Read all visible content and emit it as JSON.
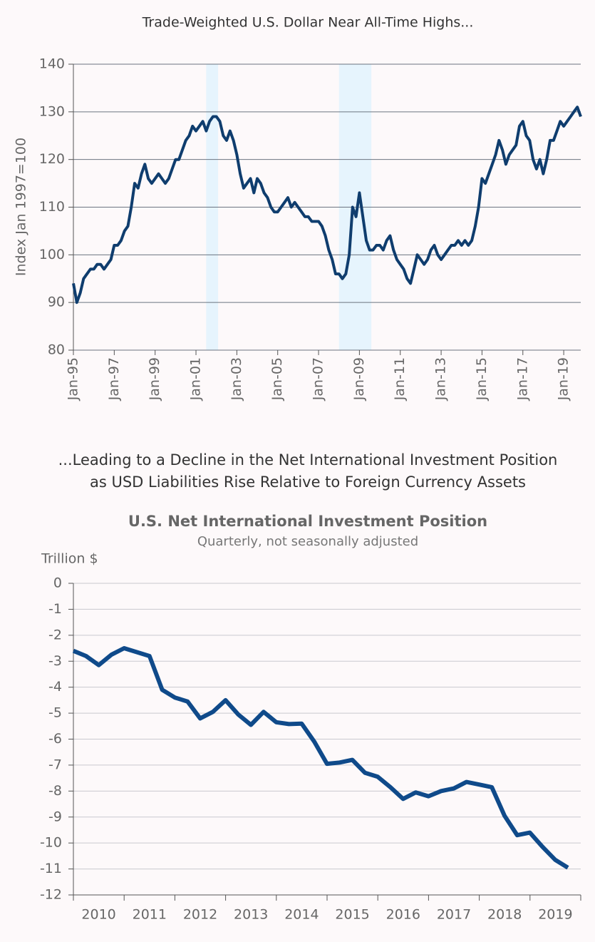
{
  "chart_data": [
    {
      "type": "line",
      "title": "Trade-Weighted U.S. Dollar Near All-Time Highs...",
      "ylabel": "Index Jan 1997=100",
      "x": [
        "1995-01",
        "1995-03",
        "1995-05",
        "1995-07",
        "1995-09",
        "1995-11",
        "1996-01",
        "1996-03",
        "1996-05",
        "1996-07",
        "1996-09",
        "1996-11",
        "1997-01",
        "1997-03",
        "1997-05",
        "1997-07",
        "1997-09",
        "1997-11",
        "1998-01",
        "1998-03",
        "1998-05",
        "1998-07",
        "1998-09",
        "1998-11",
        "1999-01",
        "1999-03",
        "1999-05",
        "1999-07",
        "1999-09",
        "1999-11",
        "2000-01",
        "2000-03",
        "2000-05",
        "2000-07",
        "2000-09",
        "2000-11",
        "2001-01",
        "2001-03",
        "2001-05",
        "2001-07",
        "2001-09",
        "2001-11",
        "2002-01",
        "2002-03",
        "2002-05",
        "2002-07",
        "2002-09",
        "2002-11",
        "2003-01",
        "2003-03",
        "2003-05",
        "2003-07",
        "2003-09",
        "2003-11",
        "2004-01",
        "2004-03",
        "2004-05",
        "2004-07",
        "2004-09",
        "2004-11",
        "2005-01",
        "2005-03",
        "2005-05",
        "2005-07",
        "2005-09",
        "2005-11",
        "2006-01",
        "2006-03",
        "2006-05",
        "2006-07",
        "2006-09",
        "2006-11",
        "2007-01",
        "2007-03",
        "2007-05",
        "2007-07",
        "2007-09",
        "2007-11",
        "2008-01",
        "2008-03",
        "2008-05",
        "2008-07",
        "2008-09",
        "2008-11",
        "2009-01",
        "2009-03",
        "2009-05",
        "2009-07",
        "2009-09",
        "2009-11",
        "2010-01",
        "2010-03",
        "2010-05",
        "2010-07",
        "2010-09",
        "2010-11",
        "2011-01",
        "2011-03",
        "2011-05",
        "2011-07",
        "2011-09",
        "2011-11",
        "2012-01",
        "2012-03",
        "2012-05",
        "2012-07",
        "2012-09",
        "2012-11",
        "2013-01",
        "2013-03",
        "2013-05",
        "2013-07",
        "2013-09",
        "2013-11",
        "2014-01",
        "2014-03",
        "2014-05",
        "2014-07",
        "2014-09",
        "2014-11",
        "2015-01",
        "2015-03",
        "2015-05",
        "2015-07",
        "2015-09",
        "2015-11",
        "2016-01",
        "2016-03",
        "2016-05",
        "2016-07",
        "2016-09",
        "2016-11",
        "2017-01",
        "2017-03",
        "2017-05",
        "2017-07",
        "2017-09",
        "2017-11",
        "2018-01",
        "2018-03",
        "2018-05",
        "2018-07",
        "2018-09",
        "2018-11",
        "2019-01",
        "2019-03",
        "2019-05",
        "2019-07",
        "2019-09",
        "2019-11"
      ],
      "series": [
        {
          "name": "Trade-Weighted U.S. Dollar",
          "color": "#0f3d6e",
          "values": [
            94,
            90,
            92,
            95,
            96,
            97,
            97,
            98,
            98,
            97,
            98,
            99,
            102,
            102,
            103,
            105,
            106,
            110,
            115,
            114,
            117,
            119,
            116,
            115,
            116,
            117,
            116,
            115,
            116,
            118,
            120,
            120,
            122,
            124,
            125,
            127,
            126,
            127,
            128,
            126,
            128,
            129,
            129,
            128,
            125,
            124,
            126,
            124,
            121,
            117,
            114,
            115,
            116,
            113,
            116,
            115,
            113,
            112,
            110,
            109,
            109,
            110,
            111,
            112,
            110,
            111,
            110,
            109,
            108,
            108,
            107,
            107,
            107,
            106,
            104,
            101,
            99,
            96,
            96,
            95,
            96,
            100,
            110,
            108,
            113,
            108,
            103,
            101,
            101,
            102,
            102,
            101,
            103,
            104,
            101,
            99,
            98,
            97,
            95,
            94,
            97,
            100,
            99,
            98,
            99,
            101,
            102,
            100,
            99,
            100,
            101,
            102,
            102,
            103,
            102,
            103,
            102,
            103,
            106,
            110,
            116,
            115,
            117,
            119,
            121,
            124,
            122,
            119,
            121,
            122,
            123,
            127,
            128,
            125,
            124,
            120,
            118,
            120,
            117,
            120,
            124,
            124,
            126,
            128,
            127,
            128,
            129,
            130,
            131,
            129
          ]
        }
      ],
      "shaded_periods": [
        [
          "2001-07",
          "2002-02"
        ],
        [
          "2008-01",
          "2009-08"
        ]
      ],
      "shade_color": "#e6f4fd",
      "xlim": [
        "1995-01",
        "2019-11"
      ],
      "xticks": [
        {
          "value": "1995-01",
          "label": "Jan-95"
        },
        {
          "value": "1997-01",
          "label": "Jan-97"
        },
        {
          "value": "1999-01",
          "label": "Jan-99"
        },
        {
          "value": "2001-01",
          "label": "Jan-01"
        },
        {
          "value": "2003-01",
          "label": "Jan-03"
        },
        {
          "value": "2005-01",
          "label": "Jan-05"
        },
        {
          "value": "2007-01",
          "label": "Jan-07"
        },
        {
          "value": "2009-01",
          "label": "Jan-09"
        },
        {
          "value": "2011-01",
          "label": "Jan-11"
        },
        {
          "value": "2013-01",
          "label": "Jan-13"
        },
        {
          "value": "2015-01",
          "label": "Jan-15"
        },
        {
          "value": "2017-01",
          "label": "Jan-17"
        },
        {
          "value": "2019-01",
          "label": "Jan-19"
        }
      ],
      "ylim": [
        80,
        140
      ],
      "yticks": [
        80,
        90,
        100,
        110,
        120,
        130,
        140
      ],
      "grid": true
    },
    {
      "type": "line",
      "header": [
        "...Leading to a Decline in the Net International Investment Position",
        "as USD Liabilities Rise Relative to Foreign Currency Assets"
      ],
      "title": "U.S. Net International Investment Position",
      "subtitle": "Quarterly, not seasonally adjusted",
      "ylabel": "Trillion $",
      "categories": [
        "2010",
        null,
        null,
        null,
        "2011",
        null,
        null,
        null,
        "2012",
        null,
        null,
        null,
        "2013",
        null,
        null,
        null,
        "2014",
        null,
        null,
        null,
        "2015",
        null,
        null,
        null,
        "2016",
        null,
        null,
        null,
        "2017",
        null,
        null,
        null,
        "2018",
        null,
        null,
        null,
        "2019",
        null,
        null,
        null
      ],
      "series": [
        {
          "name": "U.S. Net International Investment Position",
          "color": "#0f4a8a",
          "values": [
            -2.6,
            -2.8,
            -3.15,
            -2.75,
            -2.5,
            -2.65,
            -2.8,
            -4.1,
            -4.4,
            -4.55,
            -5.2,
            -4.95,
            -4.5,
            -5.05,
            -5.45,
            -4.95,
            -5.35,
            -5.42,
            -5.4,
            -6.1,
            -6.95,
            -6.9,
            -6.8,
            -7.3,
            -7.45,
            -7.85,
            -8.3,
            -8.05,
            -8.2,
            -8.0,
            -7.9,
            -7.65,
            -7.75,
            -7.85,
            -8.95,
            -9.7,
            -9.6,
            -10.15,
            -10.65,
            -10.95
          ]
        }
      ],
      "ylim": [
        -12,
        0
      ],
      "yticks": [
        0,
        -1,
        -2,
        -3,
        -4,
        -5,
        -6,
        -7,
        -8,
        -9,
        -10,
        -11,
        -12
      ],
      "grid": true
    }
  ]
}
